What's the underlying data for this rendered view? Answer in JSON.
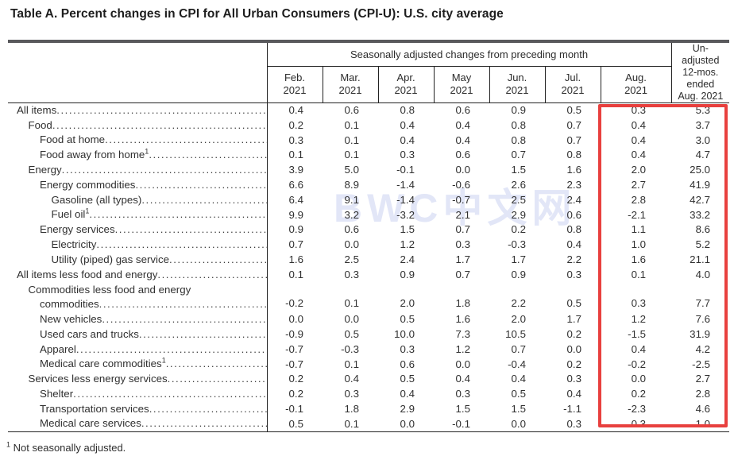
{
  "title": "Table A. Percent changes in CPI for All Urban Consumers (CPI-U): U.S. city average",
  "watermark": "BWC中文网",
  "highlight_color": "#e8403e",
  "table": {
    "group_header": "Seasonally adjusted changes from preceding month",
    "unadjusted_header": "Un-\nadjusted\n12-mos.\nended\nAug. 2021",
    "month_columns": [
      {
        "label": "Feb.",
        "year": "2021"
      },
      {
        "label": "Mar.",
        "year": "2021"
      },
      {
        "label": "Apr.",
        "year": "2021"
      },
      {
        "label": "May",
        "year": "2021"
      },
      {
        "label": "Jun.",
        "year": "2021"
      },
      {
        "label": "Jul.",
        "year": "2021"
      },
      {
        "label": "Aug.",
        "year": "2021"
      }
    ],
    "rows": [
      {
        "label": "All items",
        "indent": 0,
        "values": [
          "0.4",
          "0.6",
          "0.8",
          "0.6",
          "0.9",
          "0.5",
          "0.3",
          "5.3"
        ]
      },
      {
        "label": "Food",
        "indent": 1,
        "values": [
          "0.2",
          "0.1",
          "0.4",
          "0.4",
          "0.8",
          "0.7",
          "0.4",
          "3.7"
        ]
      },
      {
        "label": "Food at home",
        "indent": 2,
        "values": [
          "0.3",
          "0.1",
          "0.4",
          "0.4",
          "0.8",
          "0.7",
          "0.4",
          "3.0"
        ]
      },
      {
        "label": "Food away from home",
        "sup": "1",
        "indent": 2,
        "values": [
          "0.1",
          "0.1",
          "0.3",
          "0.6",
          "0.7",
          "0.8",
          "0.4",
          "4.7"
        ]
      },
      {
        "label": "Energy",
        "indent": 1,
        "values": [
          "3.9",
          "5.0",
          "-0.1",
          "0.0",
          "1.5",
          "1.6",
          "2.0",
          "25.0"
        ]
      },
      {
        "label": "Energy commodities",
        "indent": 2,
        "values": [
          "6.6",
          "8.9",
          "-1.4",
          "-0.6",
          "2.6",
          "2.3",
          "2.7",
          "41.9"
        ]
      },
      {
        "label": "Gasoline (all types)",
        "indent": 3,
        "values": [
          "6.4",
          "9.1",
          "-1.4",
          "-0.7",
          "2.5",
          "2.4",
          "2.8",
          "42.7"
        ]
      },
      {
        "label": "Fuel oil",
        "sup": "1",
        "indent": 3,
        "values": [
          "9.9",
          "3.2",
          "-3.2",
          "2.1",
          "2.9",
          "0.6",
          "-2.1",
          "33.2"
        ]
      },
      {
        "label": "Energy services",
        "indent": 2,
        "values": [
          "0.9",
          "0.6",
          "1.5",
          "0.7",
          "0.2",
          "0.8",
          "1.1",
          "8.6"
        ]
      },
      {
        "label": "Electricity",
        "indent": 3,
        "values": [
          "0.7",
          "0.0",
          "1.2",
          "0.3",
          "-0.3",
          "0.4",
          "1.0",
          "5.2"
        ]
      },
      {
        "label": "Utility (piped) gas service",
        "indent": 3,
        "values": [
          "1.6",
          "2.5",
          "2.4",
          "1.7",
          "1.7",
          "2.2",
          "1.6",
          "21.1"
        ]
      },
      {
        "label": "All items less food and energy",
        "indent": 0,
        "values": [
          "0.1",
          "0.3",
          "0.9",
          "0.7",
          "0.9",
          "0.3",
          "0.1",
          "4.0"
        ]
      },
      {
        "label": "Commodities less food and energy",
        "label2": "commodities",
        "indent": 1,
        "values": [
          "-0.2",
          "0.1",
          "2.0",
          "1.8",
          "2.2",
          "0.5",
          "0.3",
          "7.7"
        ]
      },
      {
        "label": "New vehicles",
        "indent": 2,
        "values": [
          "0.0",
          "0.0",
          "0.5",
          "1.6",
          "2.0",
          "1.7",
          "1.2",
          "7.6"
        ]
      },
      {
        "label": "Used cars and trucks",
        "indent": 2,
        "values": [
          "-0.9",
          "0.5",
          "10.0",
          "7.3",
          "10.5",
          "0.2",
          "-1.5",
          "31.9"
        ]
      },
      {
        "label": "Apparel",
        "indent": 2,
        "values": [
          "-0.7",
          "-0.3",
          "0.3",
          "1.2",
          "0.7",
          "0.0",
          "0.4",
          "4.2"
        ]
      },
      {
        "label": "Medical care commodities",
        "sup": "1",
        "indent": 2,
        "values": [
          "-0.7",
          "0.1",
          "0.6",
          "0.0",
          "-0.4",
          "0.2",
          "-0.2",
          "-2.5"
        ]
      },
      {
        "label": "Services less energy services",
        "indent": 1,
        "values": [
          "0.2",
          "0.4",
          "0.5",
          "0.4",
          "0.4",
          "0.3",
          "0.0",
          "2.7"
        ]
      },
      {
        "label": "Shelter",
        "indent": 2,
        "values": [
          "0.2",
          "0.3",
          "0.4",
          "0.3",
          "0.5",
          "0.4",
          "0.2",
          "2.8"
        ]
      },
      {
        "label": "Transportation services",
        "indent": 2,
        "values": [
          "-0.1",
          "1.8",
          "2.9",
          "1.5",
          "1.5",
          "-1.1",
          "-2.3",
          "4.6"
        ]
      },
      {
        "label": "Medical care services",
        "indent": 2,
        "values": [
          "0.5",
          "0.1",
          "0.0",
          "-0.1",
          "0.0",
          "0.3",
          "0.3",
          "1.0"
        ]
      }
    ]
  },
  "footnote": {
    "marker": "1",
    "text": "Not seasonally adjusted."
  }
}
